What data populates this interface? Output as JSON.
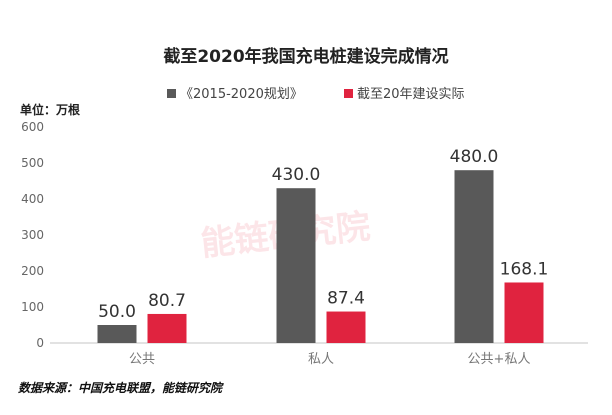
{
  "chart_data": {
    "type": "bar",
    "title": "截至2020年我国充电桩建设完成情况",
    "unit_label": "单位：万根",
    "categories": [
      "公共",
      "私人",
      "公共+私人"
    ],
    "series": [
      {
        "name": "《2015-2020规划》",
        "color": "#595959",
        "values": [
          50.0,
          430.0,
          480.0
        ],
        "labels": [
          "50.0",
          "430.0",
          "480.0"
        ]
      },
      {
        "name": "截至20年建设实际",
        "color": "#e0233f",
        "values": [
          80.7,
          87.4,
          168.1
        ],
        "labels": [
          "80.7",
          "87.4",
          "168.1"
        ]
      }
    ],
    "ylim": [
      0,
      600
    ],
    "yticks": [
      "0",
      "100",
      "200",
      "300",
      "400",
      "500",
      "600"
    ],
    "grid": false,
    "legend_position": "top-center",
    "source": "数据来源：中国充电联盟，能链研究院",
    "watermark": "能链研究院"
  }
}
